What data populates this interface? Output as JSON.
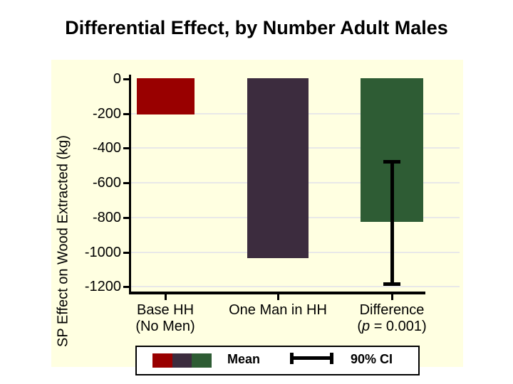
{
  "chart_data": {
    "type": "bar",
    "title": "Differential Effect, by Number Adult Males",
    "ylabel": "SP Effect on Wood Extracted (kg)",
    "xlabel": "",
    "categories": [
      "Base HH\n(No Men)",
      "One Man in HH",
      "Difference\n(p = 0.001)"
    ],
    "values": [
      -210,
      -1040,
      -830
    ],
    "bar_colors": [
      "#990000",
      "#3c2c3e",
      "#2e5c34"
    ],
    "error_bar": {
      "category_index": 2,
      "high": -475,
      "low": -1185,
      "color": "#000000",
      "label": "90% CI"
    },
    "yticks": [
      0,
      -200,
      -400,
      -600,
      -800,
      -1000,
      -1200
    ],
    "ylim": [
      -1250,
      25
    ],
    "grid": true,
    "gridline_color": "#e8e8e8",
    "plot_background": "#ffffe1",
    "legend": {
      "position": "bottom",
      "mean_label": "Mean",
      "ci_label": "90% CI"
    }
  }
}
